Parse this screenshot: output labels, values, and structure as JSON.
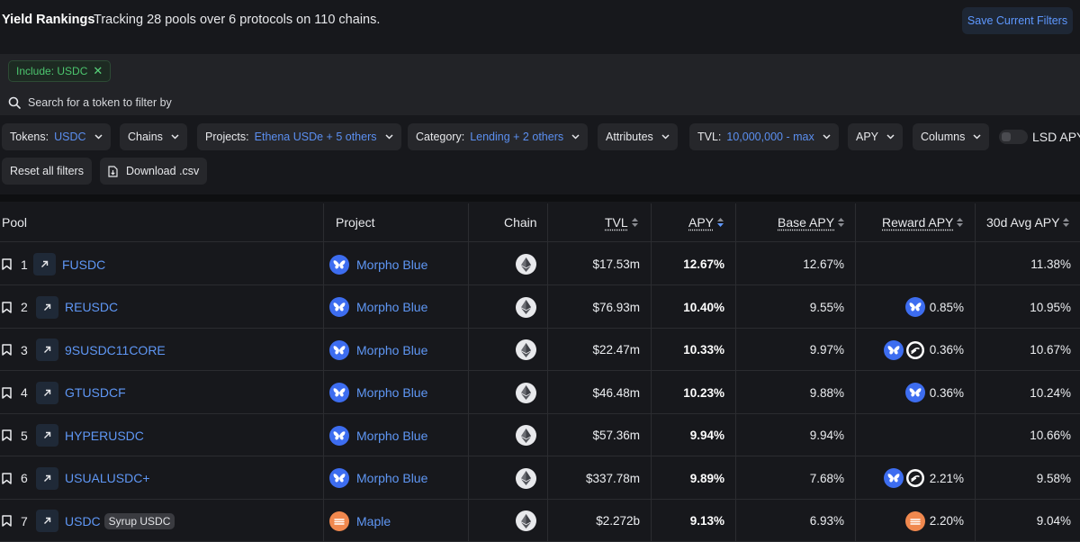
{
  "header": {
    "title": "Yield Rankings",
    "subtitle": "Tracking 28 pools over 6 protocols on 110 chains.",
    "save_label": "Save Current Filters"
  },
  "search": {
    "chip_label": "Include: USDC",
    "chip_close": "✕",
    "placeholder": "Search for a token to filter by"
  },
  "filters": {
    "tokens": {
      "label": "Tokens:",
      "value": "USDC"
    },
    "chains": {
      "label": "Chains"
    },
    "projects": {
      "label": "Projects:",
      "value": "Ethena USDe + 5 others"
    },
    "category": {
      "label": "Category:",
      "value": "Lending + 2 others"
    },
    "attributes": {
      "label": "Attributes"
    },
    "tvl": {
      "label": "TVL:",
      "value": "10,000,000 - max"
    },
    "apy": {
      "label": "APY"
    },
    "columns": {
      "label": "Columns"
    },
    "lsd": {
      "label": "LSD APY"
    },
    "reset": {
      "label": "Reset all filters"
    },
    "download": {
      "label": "Download .csv"
    }
  },
  "table": {
    "headers": {
      "pool": "Pool",
      "project": "Project",
      "chain": "Chain",
      "tvl": "TVL",
      "apy": "APY",
      "base_apy": "Base APY",
      "reward_apy": "Reward APY",
      "avg30": "30d Avg APY"
    },
    "rows": [
      {
        "rank": "1",
        "pool": "FUSDC",
        "tag": "",
        "project": "Morpho Blue",
        "tvl": "$17.53m",
        "apy": "12.67%",
        "base": "12.67%",
        "reward": "",
        "reward_icons": [],
        "avg30": "11.38%"
      },
      {
        "rank": "2",
        "pool": "REUSDC",
        "tag": "",
        "project": "Morpho Blue",
        "tvl": "$76.93m",
        "apy": "10.40%",
        "base": "9.55%",
        "reward": "0.85%",
        "reward_icons": [
          "morpho"
        ],
        "avg30": "10.95%"
      },
      {
        "rank": "3",
        "pool": "9SUSDC11CORE",
        "tag": "",
        "project": "Morpho Blue",
        "tvl": "$22.47m",
        "apy": "10.33%",
        "base": "9.97%",
        "reward": "0.36%",
        "reward_icons": [
          "morpho",
          "usual"
        ],
        "avg30": "10.67%"
      },
      {
        "rank": "4",
        "pool": "GTUSDCF",
        "tag": "",
        "project": "Morpho Blue",
        "tvl": "$46.48m",
        "apy": "10.23%",
        "base": "9.88%",
        "reward": "0.36%",
        "reward_icons": [
          "morpho"
        ],
        "avg30": "10.24%"
      },
      {
        "rank": "5",
        "pool": "HYPERUSDC",
        "tag": "",
        "project": "Morpho Blue",
        "tvl": "$57.36m",
        "apy": "9.94%",
        "base": "9.94%",
        "reward": "",
        "reward_icons": [],
        "avg30": "10.66%"
      },
      {
        "rank": "6",
        "pool": "USUALUSDC+",
        "tag": "",
        "project": "Morpho Blue",
        "tvl": "$337.78m",
        "apy": "9.89%",
        "base": "7.68%",
        "reward": "2.21%",
        "reward_icons": [
          "morpho",
          "usual"
        ],
        "avg30": "9.58%"
      },
      {
        "rank": "7",
        "pool": "USDC",
        "tag": "Syrup USDC",
        "project": "Maple",
        "tvl": "$2.272b",
        "apy": "9.13%",
        "base": "6.93%",
        "reward": "2.20%",
        "reward_icons": [
          "maple"
        ],
        "avg30": "9.04%"
      }
    ]
  },
  "colors": {
    "morpho": "#3d6df0",
    "maple": "#f0884e",
    "usual": "#ffffff",
    "link": "#5f97f5"
  }
}
